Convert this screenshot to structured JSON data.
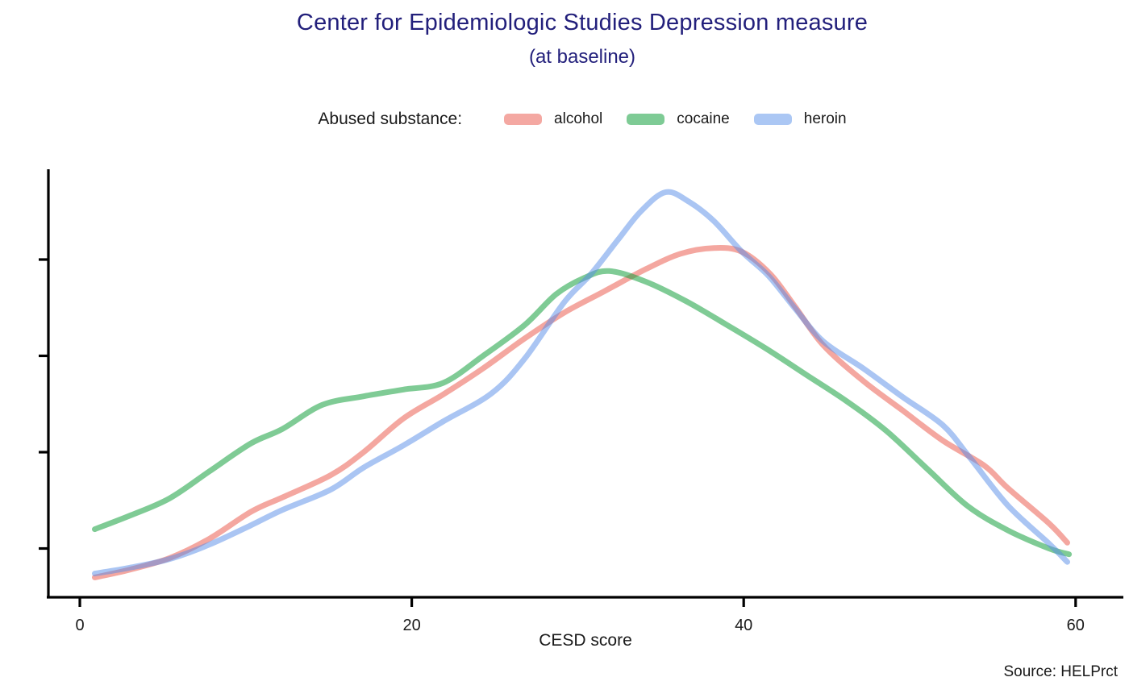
{
  "title": "Center for Epidemiologic Studies Depression measure",
  "subtitle": "(at baseline)",
  "source": "Source: HELPrct",
  "colors": {
    "title_text": "#221f7b",
    "body_text": "#1a1a1a",
    "axis": "#000000"
  },
  "legend": {
    "title": "Abused substance:",
    "items": [
      {
        "label": "alcohol",
        "swatch_color": "#f4a8a2"
      },
      {
        "label": "cocaine",
        "swatch_color": "#7ecb95"
      },
      {
        "label": "heroin",
        "swatch_color": "#abc7f4"
      }
    ]
  },
  "chart_data": {
    "type": "line",
    "subtype": "kde-density",
    "title": "Center for Epidemiologic Studies Depression measure",
    "subtitle": "(at baseline)",
    "xlabel": "CESD score",
    "ylabel": "",
    "xlim": [
      -2,
      63
    ],
    "x_ticks": [
      0,
      20,
      40,
      60
    ],
    "ylim": [
      0,
      0.049
    ],
    "y_ticks_unlabeled": [
      0.01,
      0.02,
      0.03,
      0.04
    ],
    "y_axis_labels_shown": false,
    "grid": false,
    "legend_position": "top-center",
    "series": [
      {
        "name": "alcohol",
        "line_color": "rgba(233,80,66,0.5)",
        "swatch_color": "#f4a8a2",
        "points": [
          [
            0.9,
            0.007
          ],
          [
            3.0,
            0.0078
          ],
          [
            5.4,
            0.009
          ],
          [
            7.8,
            0.011
          ],
          [
            10.3,
            0.0138
          ],
          [
            12.2,
            0.0153
          ],
          [
            15.1,
            0.0176
          ],
          [
            17.1,
            0.02
          ],
          [
            19.5,
            0.0235
          ],
          [
            21.9,
            0.026
          ],
          [
            24.3,
            0.0287
          ],
          [
            26.8,
            0.0318
          ],
          [
            29.2,
            0.0345
          ],
          [
            31.6,
            0.0367
          ],
          [
            34.1,
            0.039
          ],
          [
            36.2,
            0.0406
          ],
          [
            38.2,
            0.0412
          ],
          [
            39.9,
            0.0408
          ],
          [
            41.6,
            0.0385
          ],
          [
            43.1,
            0.0351
          ],
          [
            44.8,
            0.0311
          ],
          [
            47.2,
            0.0274
          ],
          [
            49.6,
            0.0243
          ],
          [
            52.0,
            0.0212
          ],
          [
            54.5,
            0.0186
          ],
          [
            55.9,
            0.0163
          ],
          [
            58.4,
            0.0126
          ],
          [
            59.5,
            0.0106
          ]
        ]
      },
      {
        "name": "cocaine",
        "line_color": "rgba(22,161,62,0.55)",
        "swatch_color": "#7ecb95",
        "points": [
          [
            0.9,
            0.012
          ],
          [
            3.0,
            0.0134
          ],
          [
            5.4,
            0.0152
          ],
          [
            7.8,
            0.018
          ],
          [
            10.3,
            0.0209
          ],
          [
            12.2,
            0.0224
          ],
          [
            14.6,
            0.0249
          ],
          [
            17.1,
            0.0258
          ],
          [
            19.5,
            0.0265
          ],
          [
            21.9,
            0.0272
          ],
          [
            24.3,
            0.03
          ],
          [
            26.8,
            0.0332
          ],
          [
            28.7,
            0.0364
          ],
          [
            30.4,
            0.0381
          ],
          [
            31.9,
            0.0388
          ],
          [
            34.1,
            0.0377
          ],
          [
            36.5,
            0.0357
          ],
          [
            38.9,
            0.0333
          ],
          [
            41.4,
            0.0307
          ],
          [
            43.8,
            0.028
          ],
          [
            46.2,
            0.0253
          ],
          [
            48.6,
            0.0222
          ],
          [
            51.1,
            0.0182
          ],
          [
            53.5,
            0.0144
          ],
          [
            55.9,
            0.0119
          ],
          [
            58.4,
            0.01
          ],
          [
            59.6,
            0.0094
          ]
        ]
      },
      {
        "name": "heroin",
        "line_color": "rgba(86,140,231,0.5)",
        "swatch_color": "#abc7f4",
        "points": [
          [
            0.9,
            0.0074
          ],
          [
            3.0,
            0.008
          ],
          [
            5.4,
            0.0089
          ],
          [
            7.8,
            0.0104
          ],
          [
            10.3,
            0.0124
          ],
          [
            12.2,
            0.014
          ],
          [
            15.1,
            0.0161
          ],
          [
            17.1,
            0.0184
          ],
          [
            19.5,
            0.0207
          ],
          [
            21.9,
            0.0232
          ],
          [
            24.8,
            0.0261
          ],
          [
            26.8,
            0.0297
          ],
          [
            29.2,
            0.0356
          ],
          [
            30.8,
            0.0385
          ],
          [
            32.4,
            0.042
          ],
          [
            33.8,
            0.045
          ],
          [
            35.3,
            0.047
          ],
          [
            36.7,
            0.046
          ],
          [
            38.2,
            0.044
          ],
          [
            39.9,
            0.0408
          ],
          [
            41.5,
            0.0383
          ],
          [
            43.1,
            0.0349
          ],
          [
            44.8,
            0.0315
          ],
          [
            47.2,
            0.0287
          ],
          [
            49.6,
            0.0257
          ],
          [
            52.0,
            0.0228
          ],
          [
            53.6,
            0.0195
          ],
          [
            55.9,
            0.0145
          ],
          [
            58.4,
            0.0105
          ],
          [
            59.5,
            0.0086
          ]
        ]
      }
    ]
  }
}
